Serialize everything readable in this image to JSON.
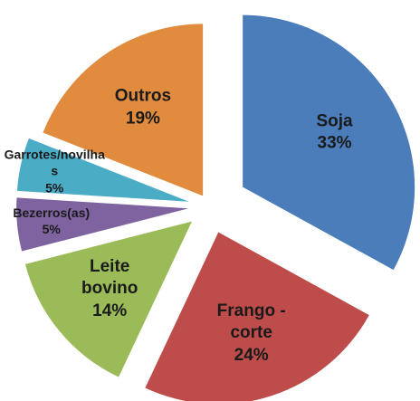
{
  "chart_data": {
    "type": "pie",
    "categories": [
      "Soja",
      "Frango - corte",
      "Leite bovino",
      "Bezerros(as)",
      "Garrotes/novilhas",
      "Outros"
    ],
    "values": [
      33,
      24,
      14,
      5,
      5,
      19
    ],
    "value_labels": [
      "33%",
      "24%",
      "14%",
      "5%",
      "5%",
      "19%"
    ],
    "colors": [
      "#4a7dba",
      "#bd4c4a",
      "#9bbb59",
      "#7f63a1",
      "#4bacc6",
      "#e08b3d"
    ]
  }
}
